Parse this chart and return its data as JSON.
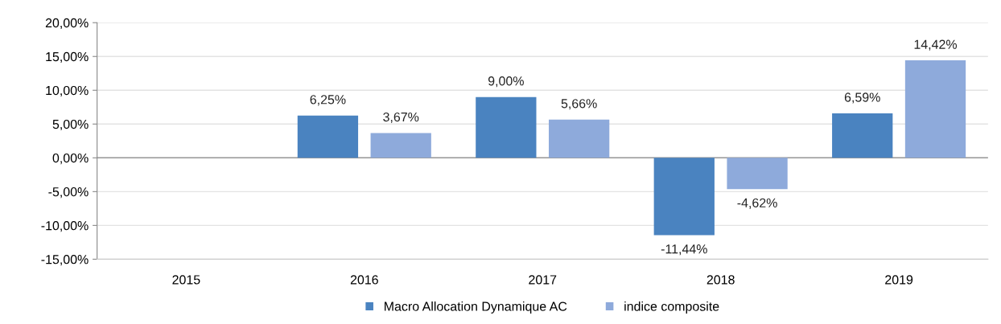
{
  "chart_data": {
    "type": "bar",
    "categories": [
      "2015",
      "2016",
      "2017",
      "2018",
      "2019"
    ],
    "series": [
      {
        "name": "Macro Allocation Dynamique AC",
        "color": "#4a83c0",
        "values": [
          null,
          6.25,
          9.0,
          -11.44,
          6.59
        ],
        "value_labels": [
          null,
          "6,25%",
          "9,00%",
          "-11,44%",
          "6,59%"
        ]
      },
      {
        "name": "indice composite",
        "color": "#8eaadb",
        "values": [
          null,
          3.67,
          5.66,
          -4.62,
          14.42
        ],
        "value_labels": [
          null,
          "3,67%",
          "5,66%",
          "-4,62%",
          "14,42%"
        ]
      }
    ],
    "ylim": [
      -15,
      20
    ],
    "yticks": [
      {
        "value": -15,
        "label": "-15,00%"
      },
      {
        "value": -10,
        "label": "-10,00%"
      },
      {
        "value": -5,
        "label": "-5,00%"
      },
      {
        "value": 0,
        "label": "0,00%"
      },
      {
        "value": 5,
        "label": "5,00%"
      },
      {
        "value": 10,
        "label": "10,00%"
      },
      {
        "value": 15,
        "label": "15,00%"
      },
      {
        "value": 20,
        "label": "20,00%"
      }
    ],
    "grid": "y",
    "legend": "bottom"
  }
}
